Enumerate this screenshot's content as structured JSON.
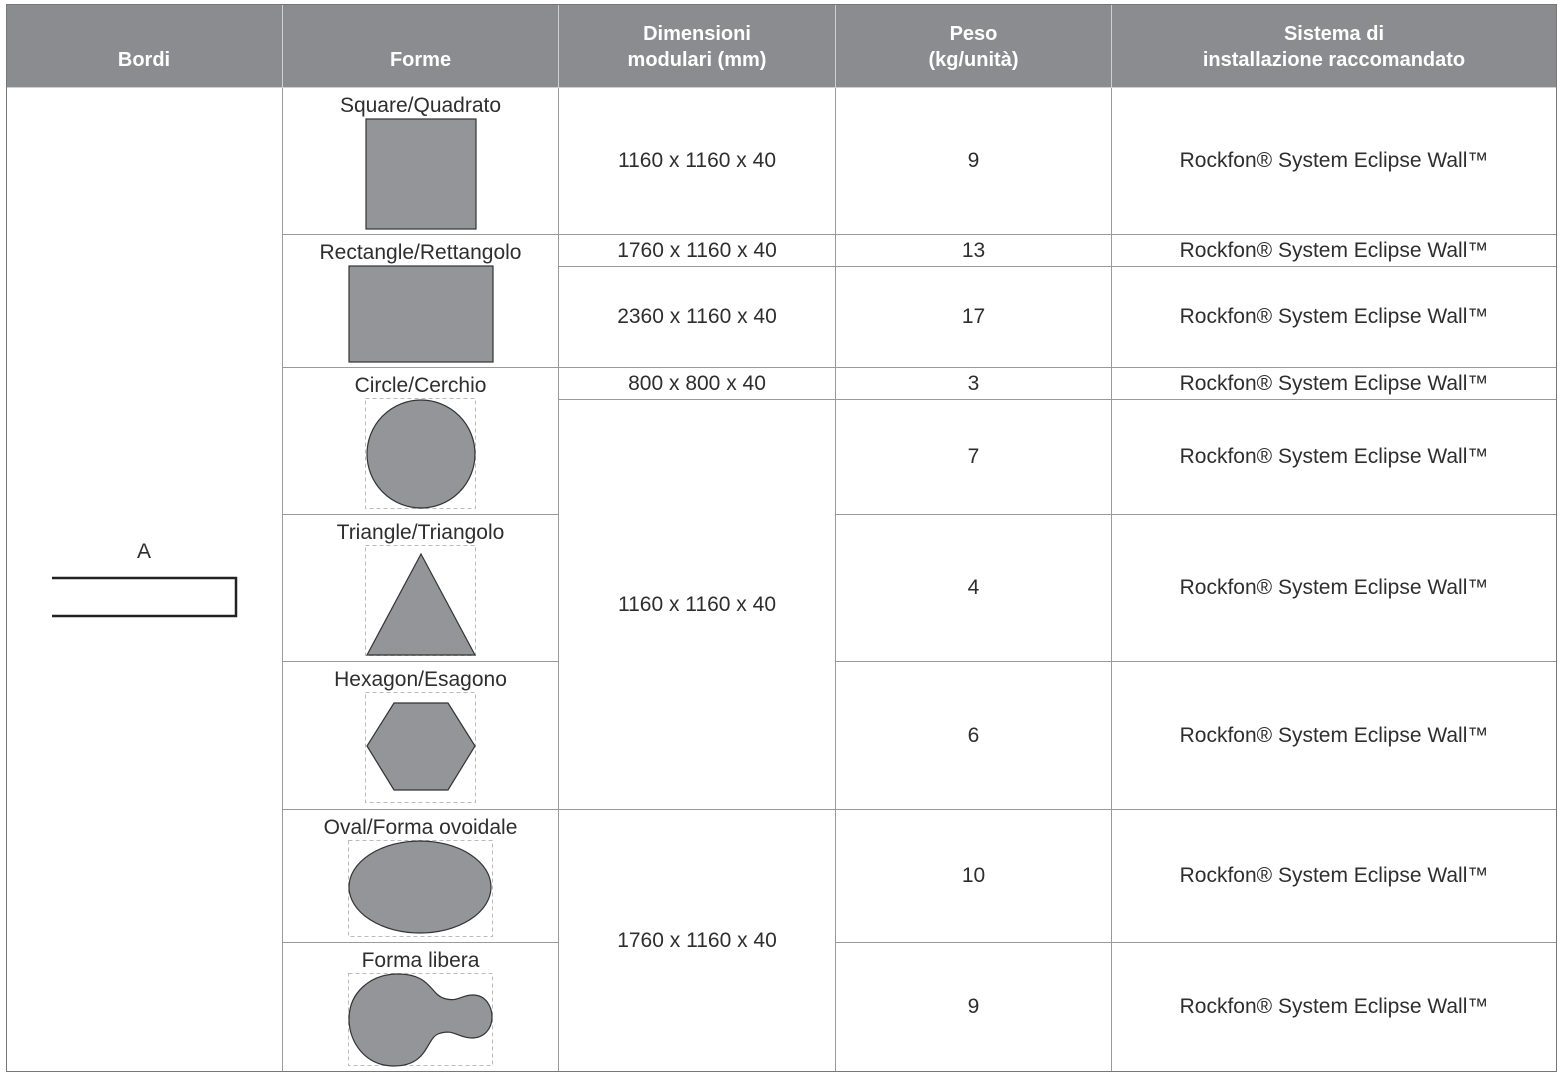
{
  "colors": {
    "header_bg": "#8b8c8f",
    "shape_fill": "#939598"
  },
  "header": {
    "bordi": "Bordi",
    "forme": "Forme",
    "dimensioni": "Dimensioni\nmodulari (mm)",
    "peso": "Peso\n(kg/unità)",
    "sistema": "Sistema di\ninstallazione raccomandato"
  },
  "bordi": {
    "edge": "A"
  },
  "shapes": [
    {
      "label": "Square/Quadrato",
      "icon": "square"
    },
    {
      "label": "Rectangle/Rettangolo",
      "icon": "rectangle"
    },
    {
      "label": "Circle/Cerchio",
      "icon": "circle"
    },
    {
      "label": "Triangle/Triangolo",
      "icon": "triangle"
    },
    {
      "label": "Hexagon/Esagono",
      "icon": "hexagon"
    },
    {
      "label": "Oval/Forma ovoidale",
      "icon": "oval"
    },
    {
      "label": "Forma libera",
      "icon": "freeform"
    }
  ],
  "dimensions": [
    "1160 x 1160 x 40",
    "1760 x 1160 x 40",
    "2360 x 1160 x 40",
    "800 x 800 x 40",
    "1160 x 1160 x 40",
    "1760 x 1160 x 40"
  ],
  "rows": [
    {
      "peso": "9",
      "sistema": "Rockfon® System Eclipse Wall™"
    },
    {
      "peso": "13",
      "sistema": "Rockfon® System Eclipse Wall™"
    },
    {
      "peso": "17",
      "sistema": "Rockfon® System Eclipse Wall™"
    },
    {
      "peso": "3",
      "sistema": "Rockfon® System Eclipse Wall™"
    },
    {
      "peso": "7",
      "sistema": "Rockfon® System Eclipse Wall™"
    },
    {
      "peso": "4",
      "sistema": "Rockfon® System Eclipse Wall™"
    },
    {
      "peso": "6",
      "sistema": "Rockfon® System Eclipse Wall™"
    },
    {
      "peso": "10",
      "sistema": "Rockfon® System Eclipse Wall™"
    },
    {
      "peso": "9",
      "sistema": "Rockfon® System Eclipse Wall™"
    }
  ]
}
